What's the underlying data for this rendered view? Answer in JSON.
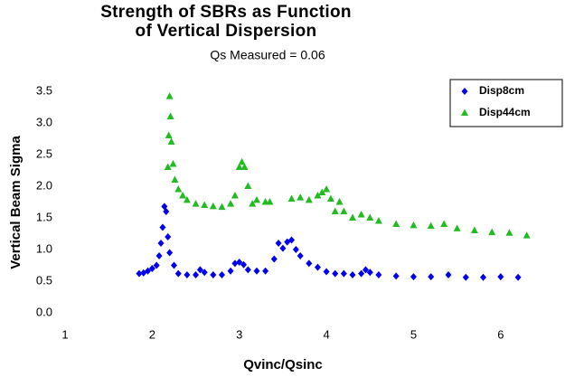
{
  "chart_data": {
    "type": "scatter",
    "title": "Strength of SBRs as Function of Vertical Dispersion",
    "subtitle": "Qs Measured = 0.06",
    "xlabel": "Qvinc/Qsinc",
    "ylabel": "Vertical Beam Sigma",
    "xlim": [
      1,
      6.5
    ],
    "ylim": [
      0,
      3.5
    ],
    "xticks": [
      1,
      2,
      3,
      4,
      5,
      6
    ],
    "yticks": [
      {
        "value": 0,
        "label": "0.0"
      },
      0.5,
      {
        "value": 1,
        "label": "1.0"
      },
      1.5,
      {
        "value": 2,
        "label": "2.0"
      },
      2.5,
      {
        "value": 3,
        "label": "3.0"
      },
      3.5
    ],
    "legend": "upper right",
    "series": [
      {
        "name": "Disp8cm",
        "color": "#0000ee",
        "marker": "diamond",
        "x": [
          1.85,
          1.9,
          1.95,
          2.0,
          2.05,
          2.08,
          2.1,
          2.12,
          2.14,
          2.16,
          2.18,
          2.2,
          2.25,
          2.3,
          2.4,
          2.5,
          2.55,
          2.6,
          2.7,
          2.8,
          2.9,
          2.95,
          3.0,
          3.05,
          3.1,
          3.2,
          3.3,
          3.4,
          3.45,
          3.5,
          3.55,
          3.6,
          3.65,
          3.7,
          3.8,
          3.9,
          4.0,
          4.1,
          4.2,
          4.3,
          4.4,
          4.45,
          4.5,
          4.6,
          4.8,
          5.0,
          5.2,
          5.4,
          5.6,
          5.8,
          6.0,
          6.2
        ],
        "values": [
          0.62,
          0.63,
          0.66,
          0.7,
          0.75,
          0.9,
          1.1,
          1.35,
          1.68,
          1.6,
          1.2,
          0.95,
          0.75,
          0.62,
          0.6,
          0.6,
          0.68,
          0.64,
          0.6,
          0.6,
          0.66,
          0.78,
          0.8,
          0.76,
          0.68,
          0.66,
          0.66,
          0.85,
          1.1,
          1.02,
          1.12,
          1.15,
          1.0,
          0.9,
          0.78,
          0.72,
          0.65,
          0.62,
          0.62,
          0.6,
          0.62,
          0.68,
          0.64,
          0.6,
          0.58,
          0.57,
          0.57,
          0.6,
          0.56,
          0.56,
          0.57,
          0.56
        ]
      },
      {
        "name": "Disp44cm",
        "color": "#22bb22",
        "marker": "triangle",
        "x": [
          2.18,
          2.19,
          2.2,
          2.21,
          2.22,
          2.24,
          2.26,
          2.3,
          2.35,
          2.4,
          2.5,
          2.6,
          2.7,
          2.8,
          2.9,
          2.95,
          3.0,
          3.03,
          3.06,
          3.1,
          3.15,
          3.2,
          3.3,
          3.35,
          3.6,
          3.7,
          3.8,
          3.9,
          3.95,
          4.0,
          4.05,
          4.1,
          4.15,
          4.2,
          4.3,
          4.4,
          4.5,
          4.6,
          4.8,
          5.0,
          5.2,
          5.35,
          5.5,
          5.7,
          5.9,
          6.1,
          6.3
        ],
        "values": [
          2.3,
          2.8,
          3.42,
          3.1,
          2.7,
          2.35,
          2.1,
          1.95,
          1.85,
          1.78,
          1.72,
          1.7,
          1.68,
          1.67,
          1.72,
          1.85,
          2.3,
          2.38,
          2.3,
          2.0,
          1.72,
          1.78,
          1.75,
          1.75,
          1.8,
          1.82,
          1.78,
          1.85,
          1.9,
          1.95,
          1.8,
          1.6,
          1.75,
          1.6,
          1.5,
          1.55,
          1.5,
          1.45,
          1.4,
          1.38,
          1.37,
          1.4,
          1.33,
          1.3,
          1.27,
          1.26,
          1.22
        ]
      }
    ]
  }
}
